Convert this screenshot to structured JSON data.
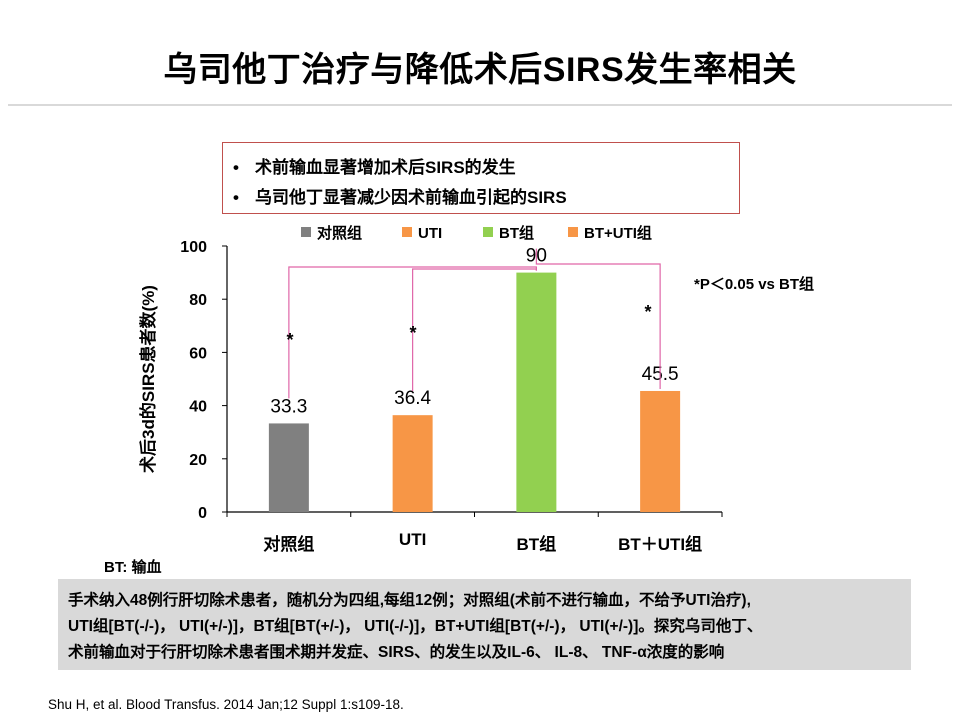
{
  "slide": {
    "title": "乌司他丁治疗与降低术后SIRS发生率相关",
    "bullets": [
      {
        "marker": "•",
        "text": "术前输血显著增加术后SIRS的发生"
      },
      {
        "marker": "•",
        "text": "乌司他丁显著减少因术前输血引起的SIRS"
      }
    ],
    "significance_note": "*P＜0.05 vs BT组",
    "abbreviation_note": "BT:  输血",
    "description_lines": [
      "手术纳入48例行肝切除术患者，随机分为四组,每组12例；对照组(术前不进行输血，不给予UTI治疗),",
      "UTI组[BT(-/-)，  UTI(+/-)]，BT组[BT(+/-)，  UTI(-/-)]，BT+UTI组[BT(+/-)，  UTI(+/-)]。探究乌司他丁、",
      "术前输血对于行肝切除术患者围术期并发症、SIRS、的发生以及IL-6、 IL-8、 TNF-α浓度的影响"
    ],
    "citation": "Shu H, et al. Blood Transfus. 2014 Jan;12 Suppl 1:s109-18."
  },
  "chart_data": {
    "type": "bar",
    "categories": [
      "对照组",
      "UTI",
      "BT组",
      "BT＋UTI组"
    ],
    "series": [
      {
        "name": "对照组",
        "color": "#808080"
      },
      {
        "name": "UTI",
        "color": "#f79646"
      },
      {
        "name": "BT组",
        "color": "#92d050"
      },
      {
        "name": "BT+UTI组",
        "color": "#f79646"
      }
    ],
    "values": [
      33.3,
      36.4,
      90,
      45.5
    ],
    "value_labels": [
      "33.3",
      "36.4",
      "90",
      "45.5"
    ],
    "bar_colors": [
      "#808080",
      "#f79646",
      "#92d050",
      "#f79646"
    ],
    "ylabel": "术后3d的SIRS患者数(%)",
    "xlabel": "",
    "ylim": [
      0,
      100
    ],
    "yticks": [
      0,
      20,
      40,
      60,
      80,
      100
    ],
    "grid": false,
    "legend_position": "top",
    "significance_brackets": [
      {
        "from": "对照组",
        "to": "BT组",
        "marker": "*"
      },
      {
        "from": "UTI",
        "to": "BT组",
        "marker": "*"
      },
      {
        "from": "BT组",
        "to": "BT＋UTI组",
        "marker": "*"
      }
    ],
    "bracket_color": "#e066a8"
  }
}
